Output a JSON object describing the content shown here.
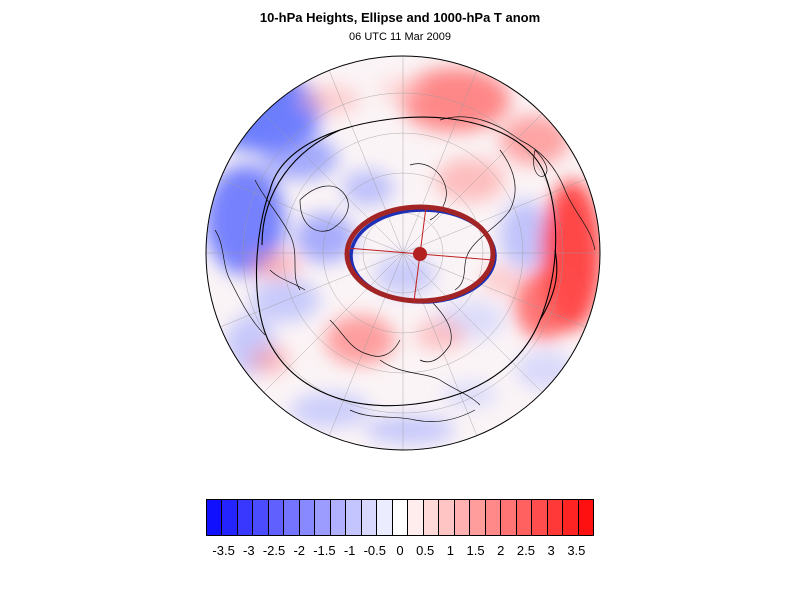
{
  "title": "10-hPa Heights, Ellipse and 1000-hPa T anom",
  "subtitle": "06 UTC 11 Mar 2009",
  "colorbar": {
    "colors": [
      "#1010ff",
      "#2424ff",
      "#3838ff",
      "#4c4cff",
      "#6060ff",
      "#7474ff",
      "#8888ff",
      "#9c9cff",
      "#b0b0ff",
      "#c4c4ff",
      "#d8d8ff",
      "#ececff",
      "#ffffff",
      "#ffecec",
      "#ffd8d8",
      "#ffc4c4",
      "#ffb0b0",
      "#ff9c9c",
      "#ff8888",
      "#ff7474",
      "#ff6060",
      "#ff4c4c",
      "#ff3838",
      "#ff2424",
      "#ff1010"
    ],
    "tick_labels": [
      "-3.5",
      "-3",
      "-2.5",
      "-2",
      "-1.5",
      "-1",
      "-0.5",
      "0",
      "0.5",
      "1",
      "1.5",
      "2",
      "2.5",
      "3",
      "3.5"
    ]
  },
  "map": {
    "projection": "north polar stereographic",
    "anomaly_cold_color": "#4a5bff",
    "anomaly_warm_color": "#ff3a3a",
    "ellipse_color": "#b32020",
    "contour_color": "#000000"
  }
}
